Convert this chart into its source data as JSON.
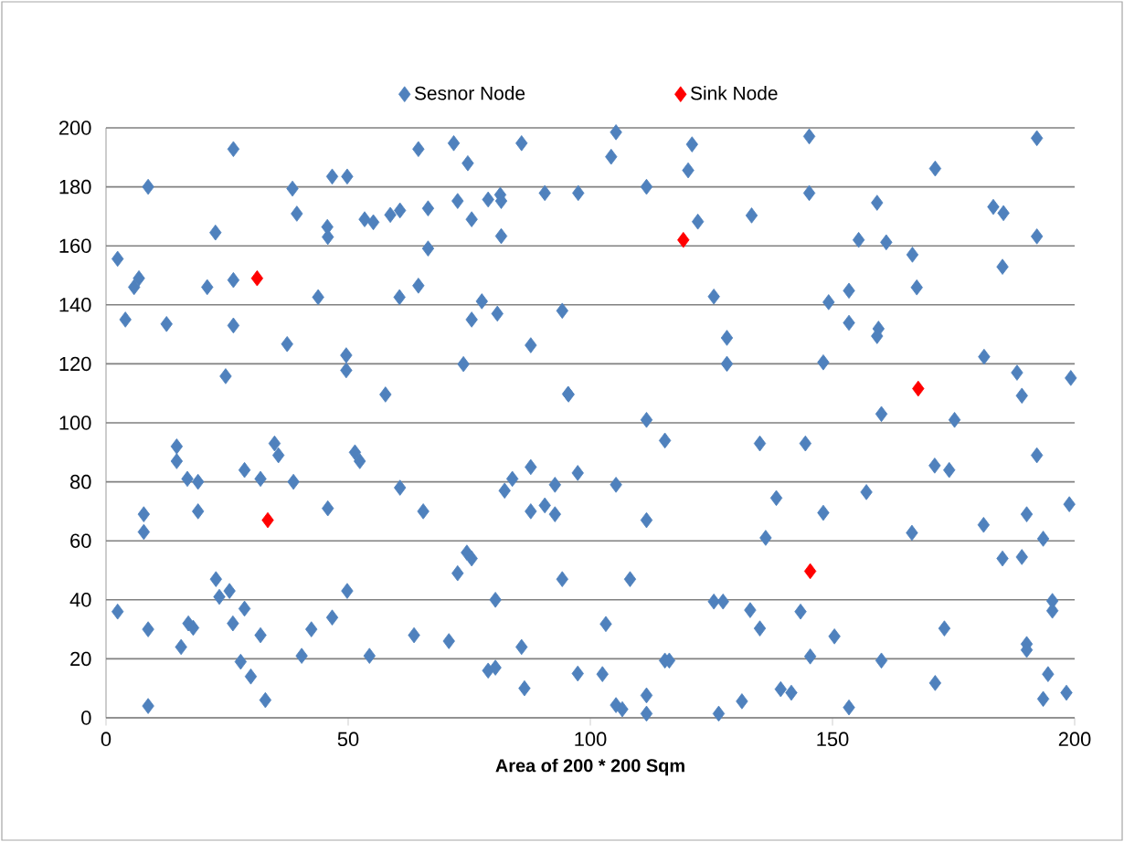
{
  "chart_data": {
    "type": "scatter",
    "xlabel": "Area of 200 * 200 Sqm",
    "xlim": [
      0,
      200
    ],
    "xticks": [
      0,
      50,
      100,
      150,
      200
    ],
    "ylim": [
      0,
      200
    ],
    "yticks": [
      0,
      20,
      40,
      60,
      80,
      100,
      120,
      140,
      160,
      180,
      200
    ],
    "grid": "y",
    "legend": "top",
    "marker": "diamond",
    "series": [
      {
        "name": "Sesnor Node",
        "color": "#4f81bd",
        "x": [
          2.4,
          7.8,
          7.8,
          8.7,
          8.7,
          14.6,
          14.6,
          16.8,
          19,
          19,
          15.5,
          17,
          18,
          22.7,
          23.4,
          25.5,
          26.2,
          27.8,
          28.6,
          28.6,
          29.9,
          31.9,
          31.9,
          32.9,
          34.8,
          35.6,
          38.7,
          40.4,
          42.4,
          45.8,
          46.7,
          49.8,
          51.4,
          52.4,
          54.4,
          60.7,
          63.6,
          65.5,
          70.8,
          72.6,
          74.5,
          75.5,
          78.9,
          80.4,
          80.4,
          82.3,
          83.9,
          85.8,
          86.4,
          87.7,
          87.7,
          90.6,
          92.7,
          92.7,
          94.2,
          97.4,
          97.4,
          111.6,
          115.4,
          160.1,
          175.2,
          135,
          144.4,
          192.2,
          171.1,
          174.1,
          105.3,
          111.6,
          138.4,
          148.1,
          157,
          136.2,
          166.4,
          181.2,
          190.1,
          198.9,
          193.5,
          185.1,
          189.1,
          108.2,
          125.5,
          127.4,
          133,
          143.4,
          135,
          103.2,
          173.1,
          195.4,
          195.4,
          150.4,
          190.1,
          190.1,
          115.4,
          116.3,
          145.4,
          160.1,
          102.5,
          194.5,
          171.2,
          198.3,
          193.5,
          105.3,
          106.6,
          111.6,
          111.6,
          126.5,
          131.3,
          139.3,
          141.5,
          153.4,
          2.4,
          4,
          5.8,
          6.8,
          8.7,
          12.5,
          20.9,
          22.6,
          24.7,
          26.3,
          26.3,
          26.3,
          37.4,
          38.5,
          39.4,
          43.8,
          45.7,
          45.8,
          46.7,
          49.8,
          49.6,
          49.6,
          53.4,
          55.2,
          57.7,
          58.7,
          60.7,
          60.6,
          64.5,
          64.5,
          66.5,
          66.5,
          71.8,
          72.6,
          73.8,
          74.7,
          75.5,
          75.5,
          77.6,
          78.9,
          81.4,
          80.8,
          81.6,
          81.6,
          85.8,
          87.7,
          90.6,
          94.2,
          95.5,
          97.5,
          105.3,
          104.3,
          111.6,
          121,
          120.2,
          122.2,
          133.3,
          145.2,
          145.2,
          159.2,
          155.4,
          161.1,
          166.5,
          171.2,
          183.2,
          185.3,
          192.2,
          192.2,
          185.1,
          167.4,
          125.5,
          149.2,
          153.4,
          128.2,
          128.2,
          153.4,
          159.5,
          159.2,
          148.1,
          181.3,
          188.1,
          199.2,
          189.1,
          95.4
        ],
        "values": [
          36,
          69,
          63,
          30,
          4,
          92,
          87,
          81,
          80,
          70,
          24,
          32,
          30.5,
          47,
          41,
          43,
          32,
          19,
          37,
          84,
          14,
          28,
          81,
          6,
          93,
          89,
          80,
          21,
          30,
          71,
          34,
          43,
          90,
          87,
          21,
          78,
          28,
          70,
          26,
          49,
          56,
          54,
          16,
          17,
          40,
          77,
          81,
          24,
          10,
          85,
          70,
          72,
          79,
          69,
          47,
          83,
          15,
          101,
          94,
          103,
          101,
          93,
          93,
          89,
          85.5,
          84,
          79,
          67,
          74.5,
          69.5,
          76.5,
          61,
          62.7,
          65.4,
          69,
          72.4,
          60.7,
          54,
          54.5,
          47,
          39.4,
          39.4,
          36.5,
          36,
          30.3,
          31.8,
          30.3,
          39.6,
          36.3,
          27.6,
          25,
          23,
          19.4,
          19.4,
          20.8,
          19.4,
          14.8,
          14.8,
          11.8,
          8.5,
          6.4,
          4.3,
          2.9,
          7.6,
          1.4,
          1.4,
          5.6,
          9.7,
          8.5,
          3.5,
          155.6,
          135,
          146,
          149,
          180,
          133.5,
          146,
          164.5,
          115.8,
          192.8,
          148.4,
          133,
          126.7,
          179.4,
          170.9,
          142.6,
          166.4,
          163,
          183.5,
          183.5,
          122.9,
          117.8,
          169,
          168,
          109.6,
          170.5,
          172,
          142.6,
          192.8,
          146.5,
          172.7,
          159.1,
          194.8,
          175.2,
          119.9,
          188,
          169,
          135,
          141.2,
          175.7,
          177.3,
          137,
          175.2,
          163.3,
          194.8,
          126.3,
          177.9,
          138,
          109.6,
          177.9,
          198.5,
          190.2,
          180,
          194.4,
          185.6,
          168.2,
          170.3,
          197.1,
          177.9,
          174.6,
          162,
          161.2,
          157,
          186.2,
          173.2,
          171.1,
          196.5,
          163.2,
          152.9,
          145.9,
          142.8,
          140.9,
          144.8,
          128.8,
          120,
          133.9,
          131.9,
          129.4,
          120.5,
          122.4,
          117,
          115.2,
          109.2,
          109.8
        ]
      },
      {
        "name": "Sink Node",
        "color": "#ff0000",
        "x": [
          31.2,
          33.4,
          119.2,
          145.4,
          167.7
        ],
        "values": [
          149,
          67,
          162,
          49.7,
          111.6
        ]
      }
    ]
  }
}
